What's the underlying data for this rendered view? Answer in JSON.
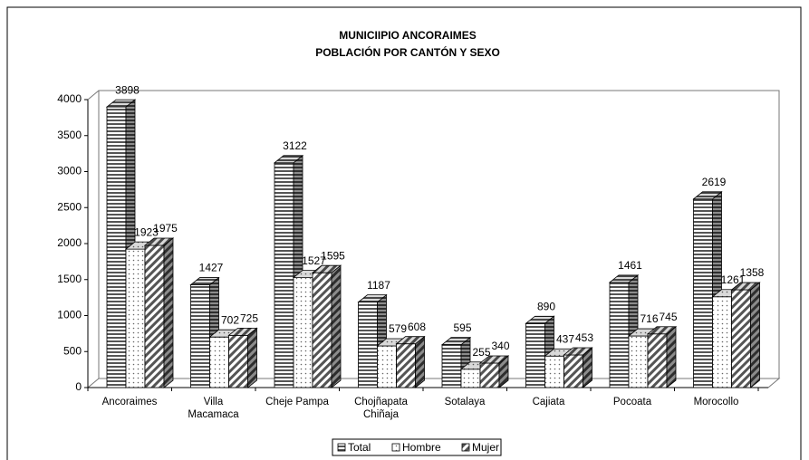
{
  "chart_data": {
    "type": "bar3d",
    "title": [
      "MUNICIIPIO ANCORAIMES",
      "POBLACIÓN POR CANTÓN Y SEXO"
    ],
    "categories": [
      "Ancoraimes",
      "Villa\nMacamaca",
      "Cheje Pampa",
      "Chojñapata\nChiñaja",
      "Sotalaya",
      "Cajiata",
      "Pocoata",
      "Morocollo"
    ],
    "series": [
      {
        "name": "Total",
        "pattern": "horizontal",
        "values": [
          3898,
          1427,
          3122,
          1187,
          595,
          890,
          1461,
          2619
        ]
      },
      {
        "name": "Hombre",
        "pattern": "dots",
        "values": [
          1923,
          702,
          1527,
          579,
          255,
          437,
          716,
          1261
        ]
      },
      {
        "name": "Mujer",
        "pattern": "diagonal",
        "values": [
          1975,
          725,
          1595,
          608,
          340,
          453,
          745,
          1358
        ]
      }
    ],
    "ylim": [
      0,
      4000
    ],
    "yticks": [
      0,
      500,
      1000,
      1500,
      2000,
      2500,
      3000,
      3500,
      4000
    ],
    "grid": false,
    "legend": "bottom"
  }
}
